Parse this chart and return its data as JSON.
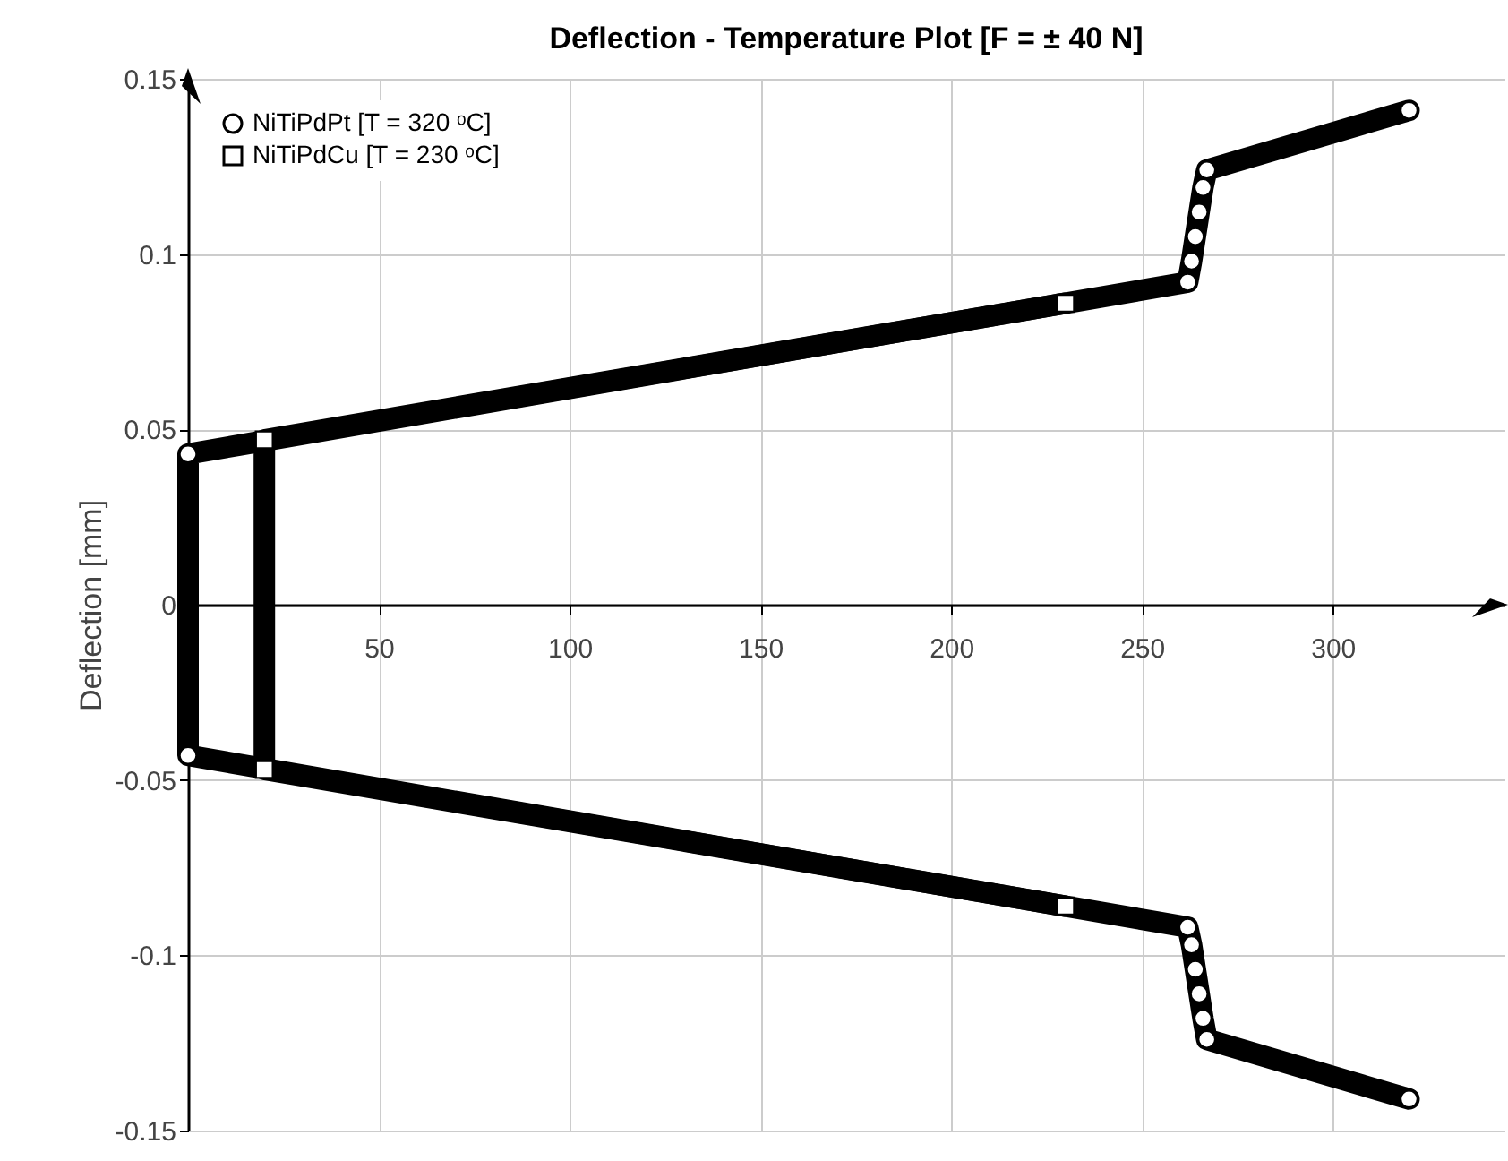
{
  "chart_data": {
    "type": "line",
    "title": "Deflection - Temperature Plot [F = ± 40 N]",
    "ylabel": "Deflection [mm]",
    "xlim": [
      0,
      345
    ],
    "ylim": [
      -0.15,
      0.15
    ],
    "xticks": [
      50,
      100,
      150,
      200,
      250,
      300
    ],
    "yticks": [
      -0.15,
      -0.1,
      -0.05,
      0,
      0.05,
      0.1,
      0.15
    ],
    "grid": true,
    "legend": "top left",
    "line_style": "solid",
    "series": [
      {
        "name": "NiTiPdPt [T = 320 ᵒC]",
        "color": "#000000",
        "marker": "circle",
        "x": [
          320,
          267,
          266,
          265,
          264,
          263,
          262,
          0,
          0,
          262,
          263,
          264,
          265,
          266,
          267,
          320
        ],
        "values": [
          -0.141,
          -0.124,
          -0.118,
          -0.111,
          -0.104,
          -0.097,
          -0.092,
          -0.043,
          0.043,
          0.092,
          0.098,
          0.105,
          0.112,
          0.119,
          0.124,
          0.141
        ]
      },
      {
        "name": "NiTiPdCu [T = 230 ᵒC]",
        "color": "#000000",
        "marker": "square",
        "x": [
          230,
          20,
          20,
          230
        ],
        "values": [
          -0.086,
          -0.047,
          0.047,
          0.086
        ]
      }
    ]
  }
}
